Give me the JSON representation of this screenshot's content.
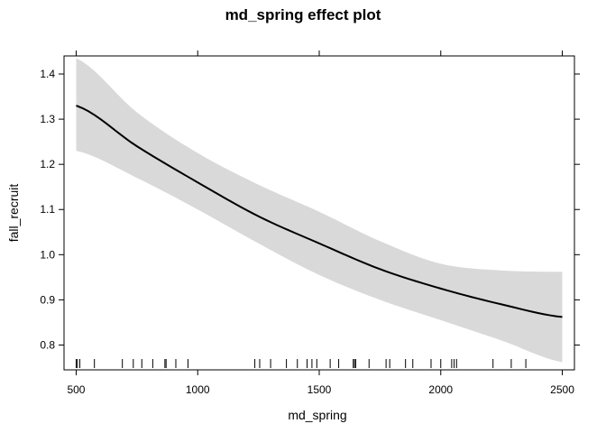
{
  "chart_data": {
    "type": "line",
    "title": "md_spring effect plot",
    "xlabel": "md_spring",
    "ylabel": "fall_recruit",
    "xlim": [
      450,
      2550
    ],
    "ylim": [
      0.745,
      1.44
    ],
    "x_ticks": [
      500,
      1000,
      1500,
      2000,
      2500
    ],
    "x_tick_labels": [
      "500",
      "1000",
      "1500",
      "2000",
      "2500"
    ],
    "y_ticks": [
      0.8,
      0.9,
      1.0,
      1.1,
      1.2,
      1.3,
      1.4
    ],
    "y_tick_labels": [
      "0.8",
      "0.9",
      "1.0",
      "1.1",
      "1.2",
      "1.3",
      "1.4"
    ],
    "grid": false,
    "line_color": "#000000",
    "band_color": "#d9d9d9",
    "series": [
      {
        "x": [
          500,
          750,
          1000,
          1250,
          1500,
          1750,
          2000,
          2250,
          2500
        ],
        "fit": [
          1.33,
          1.24,
          1.16,
          1.085,
          1.025,
          0.968,
          0.925,
          0.89,
          0.862
        ],
        "lower": [
          1.23,
          1.17,
          1.1,
          1.025,
          0.955,
          0.9,
          0.855,
          0.81,
          0.762
        ],
        "upper": [
          1.435,
          1.315,
          1.225,
          1.155,
          1.095,
          1.03,
          0.98,
          0.965,
          0.962
        ]
      }
    ],
    "rug": [
      500,
      505,
      515,
      575,
      690,
      735,
      770,
      815,
      865,
      870,
      910,
      960,
      1235,
      1255,
      1300,
      1365,
      1410,
      1450,
      1470,
      1490,
      1545,
      1580,
      1640,
      1645,
      1650,
      1705,
      1775,
      1790,
      1855,
      1885,
      1960,
      2000,
      2045,
      2055,
      2065,
      2215,
      2290,
      2350
    ]
  }
}
